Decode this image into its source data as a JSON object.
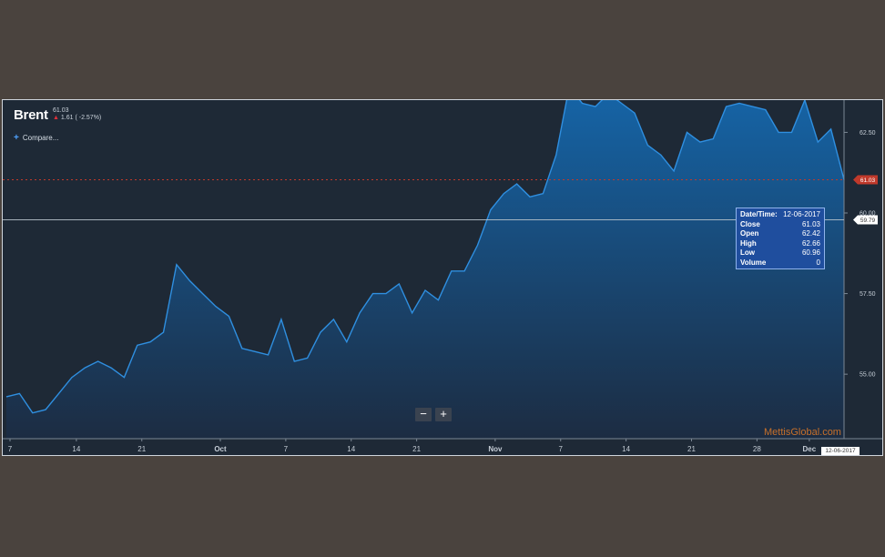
{
  "header": {
    "title": "Brent",
    "price": "61.03",
    "change": "1.61 ( -2.57%)",
    "compare_label": "Compare..."
  },
  "zoom": {
    "out_label": "−",
    "in_label": "+"
  },
  "tooltip": {
    "rows": [
      {
        "label": "Date/Time:",
        "value": "12-06-2017"
      },
      {
        "label": "Close",
        "value": "61.03"
      },
      {
        "label": "Open",
        "value": "62.42"
      },
      {
        "label": "High",
        "value": "62.66"
      },
      {
        "label": "Low",
        "value": "60.96"
      },
      {
        "label": "Volume",
        "value": "0"
      }
    ]
  },
  "watermark": "MettisGlobal.com",
  "current_date_label": "12-06-2017",
  "price_tags": {
    "last": "61.03",
    "crosshair": "59.79"
  },
  "colors": {
    "background": "#1e2936",
    "line": "#2f8fe0",
    "area_top": "#1565a8",
    "area_bottom": "#1c2c42",
    "last_price": "#c0392b"
  },
  "chart_data": {
    "type": "area",
    "title": "Brent",
    "xlabel": "",
    "ylabel": "",
    "x_tick_labels": [
      "7",
      "14",
      "21",
      "Oct",
      "7",
      "14",
      "21",
      "Nov",
      "7",
      "14",
      "21",
      "28",
      "Dec"
    ],
    "y_tick_labels": [
      "55.00",
      "57.50",
      "60.00",
      "62.50"
    ],
    "ylim": [
      53.0,
      63.5
    ],
    "grid": false,
    "series": [
      {
        "values": [
          54.3,
          54.4,
          53.8,
          53.9,
          54.4,
          54.9,
          55.2,
          55.4,
          55.2,
          54.9,
          55.9,
          56.0,
          56.3,
          58.4,
          57.9,
          57.5,
          57.1,
          56.8,
          55.8,
          55.7,
          55.6,
          56.7,
          55.4,
          55.5,
          56.3,
          56.7,
          56.0,
          56.9,
          57.5,
          57.5,
          57.8,
          56.9,
          57.6,
          57.3,
          58.2,
          58.2,
          59.0,
          60.1,
          60.6,
          60.9,
          60.5,
          60.6,
          61.8,
          63.9,
          63.4,
          63.3,
          63.7,
          63.4,
          63.1,
          62.1,
          61.8,
          61.3,
          62.5,
          62.2,
          62.3,
          63.3,
          63.4,
          63.3,
          63.2,
          62.5,
          62.5,
          63.5,
          62.2,
          62.6,
          61.03
        ]
      }
    ]
  }
}
